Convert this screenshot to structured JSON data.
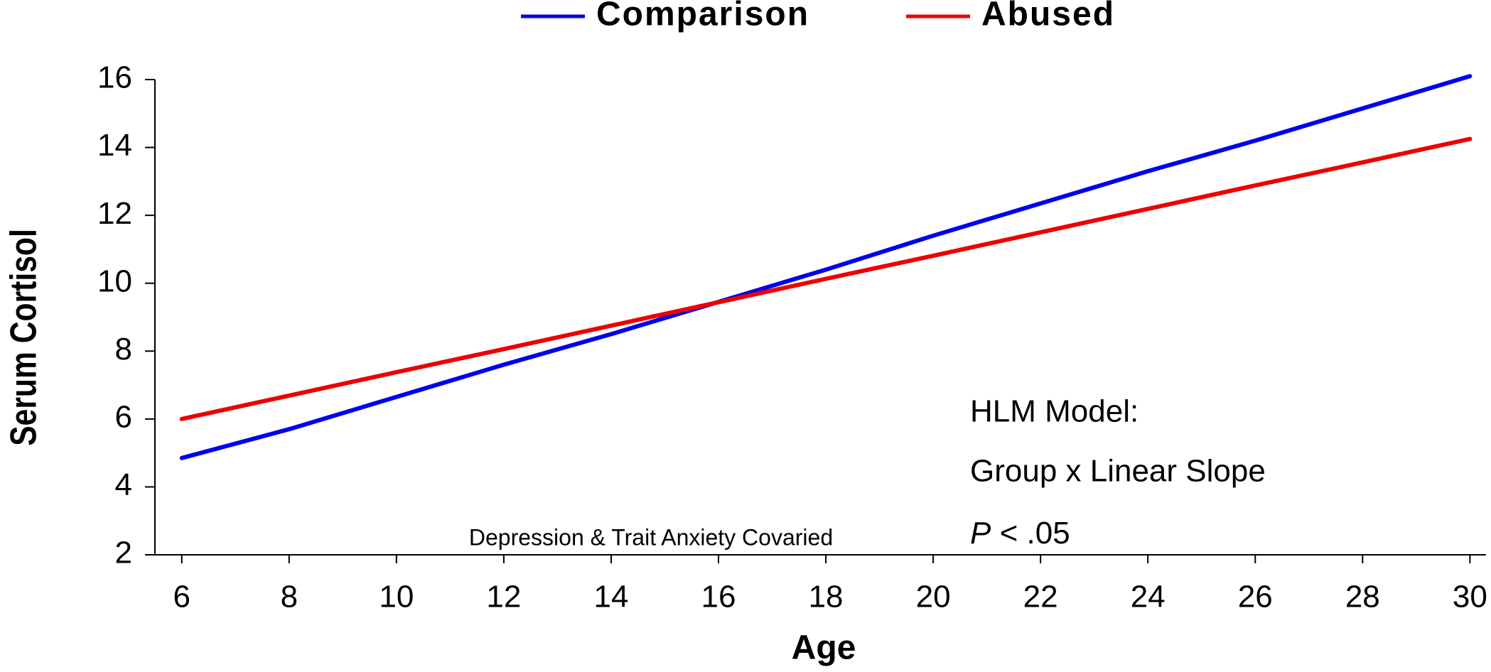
{
  "chart_data": {
    "type": "line",
    "x_label": "Age",
    "y_label": "Serum Cortisol",
    "x": [
      6,
      8,
      10,
      12,
      14,
      16,
      18,
      20,
      22,
      24,
      26,
      28,
      30
    ],
    "series": [
      {
        "name": "Comparison",
        "color": "#0000ee",
        "values": [
          4.85,
          5.7,
          6.65,
          7.6,
          8.5,
          9.45,
          10.4,
          11.4,
          12.35,
          13.3,
          14.2,
          15.15,
          16.1
        ]
      },
      {
        "name": "Abused",
        "color": "#ee0000",
        "values": [
          6.0,
          6.69,
          7.38,
          8.06,
          8.75,
          9.44,
          10.13,
          10.81,
          11.5,
          12.19,
          12.88,
          13.56,
          14.25
        ]
      }
    ],
    "xlim": [
      5.5,
      30.3
    ],
    "xticks": [
      6,
      8,
      10,
      12,
      14,
      16,
      18,
      20,
      22,
      24,
      26,
      28,
      30
    ],
    "ylim": [
      2,
      16
    ],
    "yticks": [
      2,
      4,
      6,
      8,
      10,
      12,
      14,
      16
    ],
    "legend": "top",
    "annotations": [
      "HLM Model:",
      "Group x Linear Slope"
    ],
    "p_value": [
      "P",
      "< .05"
    ],
    "note": "Depression & Trait Anxiety Covaried"
  }
}
